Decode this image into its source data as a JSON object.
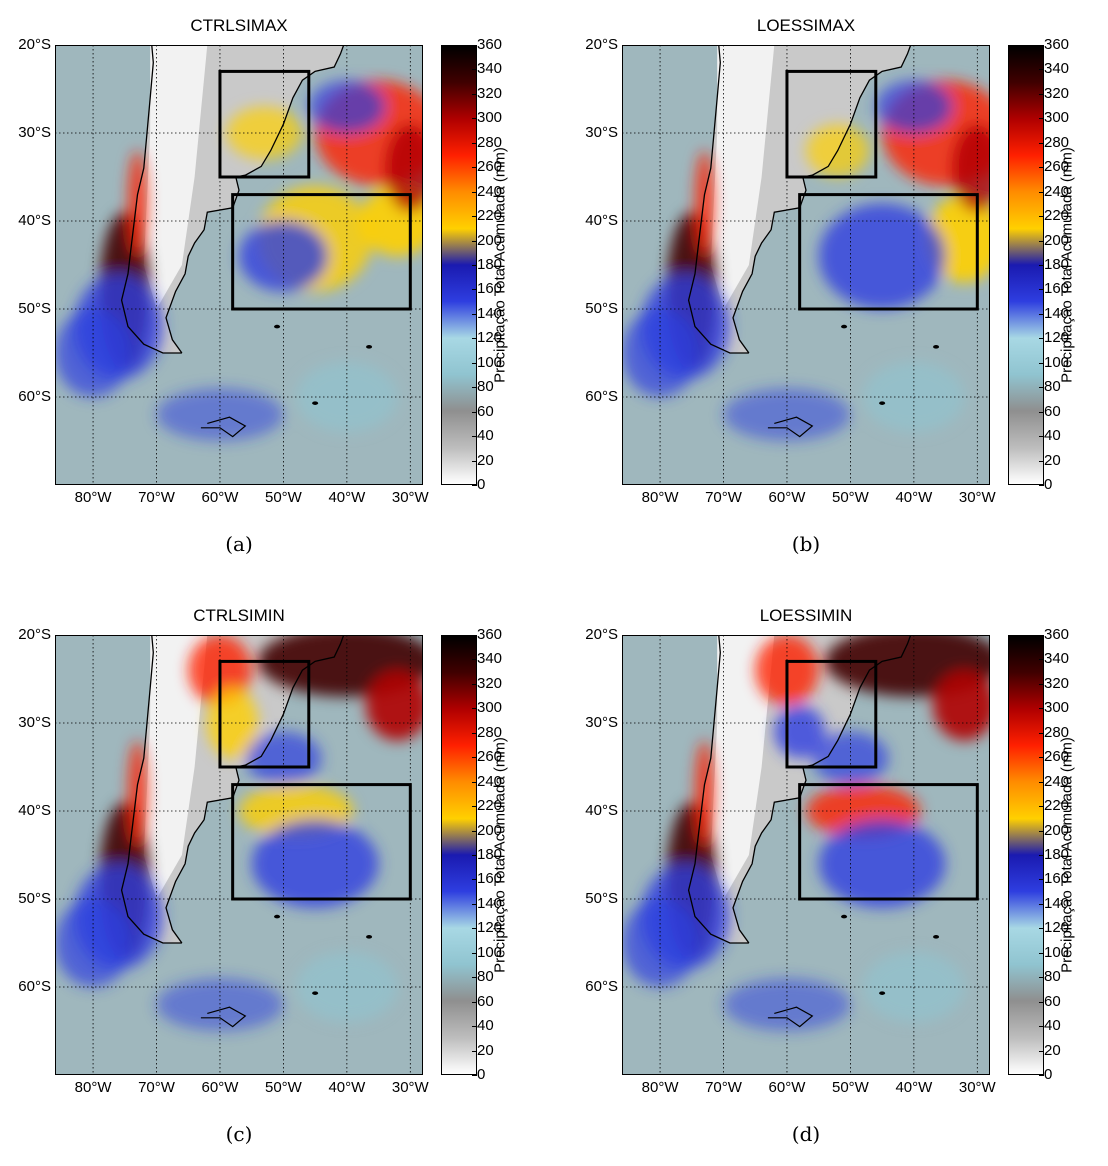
{
  "figure": {
    "panels": [
      {
        "title": "CTRLSIMAX",
        "caption": "(a)",
        "variant": "max"
      },
      {
        "title": "LOESSIMAX",
        "caption": "(b)",
        "variant": "max2"
      },
      {
        "title": "CTRLSIMIN",
        "caption": "(c)",
        "variant": "min"
      },
      {
        "title": "LOESSIMIN",
        "caption": "(d)",
        "variant": "min2"
      }
    ],
    "lat_labels": [
      "20°S",
      "30°S",
      "40°S",
      "50°S",
      "60°S"
    ],
    "lon_labels": [
      "80°W",
      "70°W",
      "60°W",
      "50°W",
      "40°W",
      "30°W"
    ],
    "colorbar": {
      "label": "Precipitação Total Acumulada (mm)",
      "ticks": [
        "360",
        "340",
        "320",
        "300",
        "280",
        "260",
        "240",
        "220",
        "200",
        "180",
        "160",
        "140",
        "120",
        "100",
        "80",
        "60",
        "40",
        "20",
        "0"
      ],
      "min": 0,
      "max": 360,
      "colors": [
        "#ffffff",
        "#bdbdbd",
        "#8f8f8f",
        "#90c4d0",
        "#a8d8e4",
        "#2e3ee0",
        "#1a1ab0",
        "#ffd000",
        "#ff8c00",
        "#ff2000",
        "#b00000",
        "#400000",
        "#000000"
      ]
    },
    "map": {
      "extent_lon": [
        -86,
        -28
      ],
      "extent_lat": [
        -70,
        -20
      ],
      "boxes": [
        {
          "lon": [
            -60,
            -46
          ],
          "lat": [
            -35,
            -23
          ]
        },
        {
          "lon": [
            -58,
            -30
          ],
          "lat": [
            -50,
            -37
          ]
        }
      ]
    }
  }
}
